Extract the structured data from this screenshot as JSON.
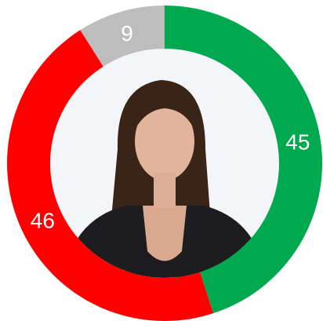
{
  "chart_data": {
    "type": "donut",
    "values": [
      45,
      46,
      9
    ],
    "colors": [
      "#00a94f",
      "#ff0000",
      "#bdbdbd"
    ]
  }
}
